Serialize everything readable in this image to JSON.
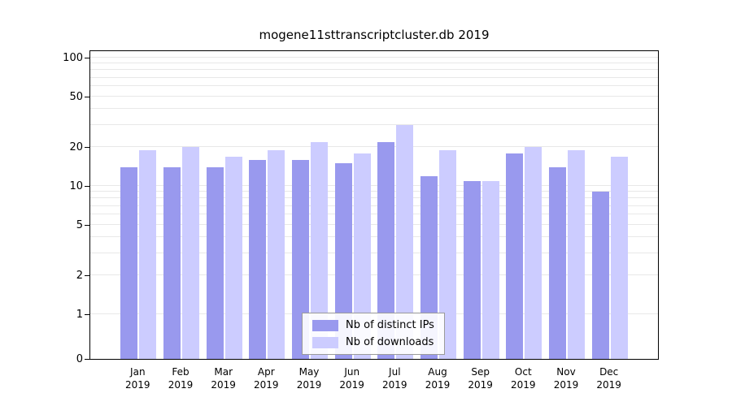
{
  "chart_data": {
    "type": "bar",
    "title": "mogene11sttranscriptcluster.db 2019",
    "categories": [
      "Jan",
      "Feb",
      "Mar",
      "Apr",
      "May",
      "Jun",
      "Jul",
      "Aug",
      "Sep",
      "Oct",
      "Nov",
      "Dec"
    ],
    "x_sublabel": "2019",
    "series": [
      {
        "name": "Nb of distinct IPs",
        "color": "#9999ee",
        "values": [
          14,
          14,
          14,
          16,
          16,
          15,
          22,
          12,
          11,
          18,
          14,
          9
        ]
      },
      {
        "name": "Nb of downloads",
        "color": "#ccccff",
        "values": [
          19,
          20,
          17,
          19,
          22,
          18,
          30,
          19,
          11,
          20,
          19,
          17
        ]
      }
    ],
    "yticks": [
      0,
      1,
      2,
      5,
      10,
      20,
      50,
      100
    ],
    "ylim": [
      0,
      100
    ],
    "scale": "symlog",
    "grid": true,
    "legend_position": "bottom-center"
  },
  "colors": {
    "background": "#ffffff",
    "axis": "#000000",
    "grid": "#e8e8e8",
    "bar_distinct_ips": "#9999ee",
    "bar_downloads": "#ccccff"
  }
}
